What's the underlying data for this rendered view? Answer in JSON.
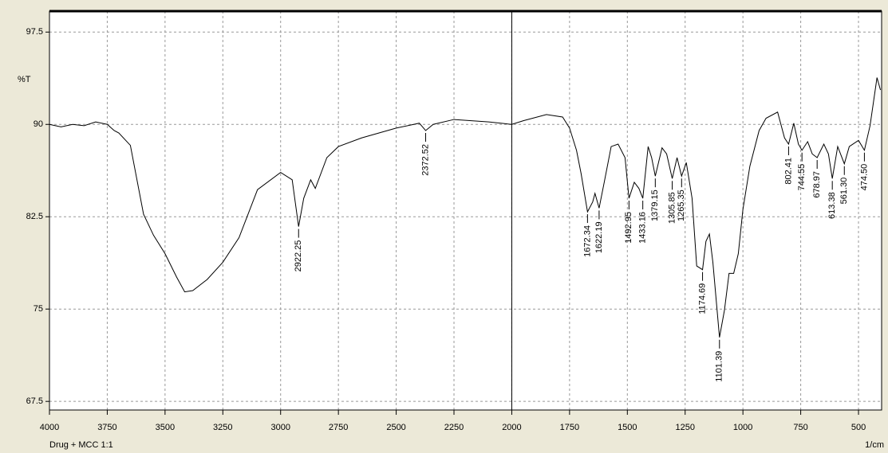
{
  "chart_data": {
    "type": "line",
    "y_label": "%T",
    "x_label": "1/cm",
    "sample": "Drug + MCC 1:1",
    "xlim": [
      4000,
      400
    ],
    "ylim": [
      66.8,
      99.2
    ],
    "xticks": [
      4000,
      3750,
      3500,
      3250,
      3000,
      2750,
      2500,
      2250,
      2000,
      1750,
      1500,
      1250,
      1000,
      750,
      500
    ],
    "yticks": [
      67.5,
      75,
      82.5,
      90,
      97.5
    ],
    "grid": true,
    "vline": 2000,
    "x": [
      4000,
      3950,
      3900,
      3850,
      3800,
      3750,
      3720,
      3700,
      3650,
      3593,
      3550,
      3500,
      3450,
      3415,
      3380,
      3318,
      3250,
      3180,
      3100,
      3000,
      2950,
      2922.25,
      2900,
      2870,
      2850,
      2800,
      2750,
      2650,
      2500,
      2400,
      2372.52,
      2340,
      2250,
      2100,
      2000,
      1950,
      1850,
      1780,
      1750,
      1720,
      1700,
      1672.34,
      1650,
      1640,
      1622.19,
      1600,
      1570,
      1540,
      1510,
      1492.95,
      1470,
      1450,
      1433.16,
      1410,
      1395,
      1379.15,
      1350,
      1330,
      1305.85,
      1285,
      1265.35,
      1245,
      1220,
      1200,
      1174.69,
      1160,
      1145,
      1130,
      1101.39,
      1080,
      1060,
      1040,
      1020,
      1000,
      970,
      930,
      900,
      850,
      820,
      802.41,
      780,
      760,
      744.55,
      720,
      700,
      678.97,
      650,
      630,
      613.38,
      590,
      561.3,
      540,
      500,
      474.5,
      450,
      420,
      405
    ],
    "series": [
      {
        "color": "#000000",
        "values": [
          90.0,
          89.8,
          90.0,
          89.9,
          90.2,
          90.0,
          89.5,
          89.3,
          88.3,
          82.7,
          81.0,
          79.5,
          77.6,
          76.4,
          76.5,
          77.4,
          78.8,
          80.8,
          84.7,
          86.1,
          85.5,
          81.7,
          84.0,
          85.5,
          84.8,
          87.3,
          88.2,
          88.9,
          89.7,
          90.1,
          89.5,
          90.0,
          90.4,
          90.2,
          90.0,
          90.3,
          90.8,
          90.6,
          89.7,
          87.9,
          86.0,
          82.9,
          83.7,
          84.4,
          83.2,
          85.3,
          88.2,
          88.4,
          87.3,
          84.0,
          85.3,
          84.8,
          84.0,
          88.2,
          87.3,
          85.8,
          88.1,
          87.6,
          85.6,
          87.3,
          85.8,
          86.9,
          84.0,
          78.5,
          78.2,
          80.5,
          81.1,
          78.8,
          72.7,
          74.9,
          77.9,
          77.9,
          79.5,
          83.1,
          86.6,
          89.5,
          90.5,
          91.0,
          88.9,
          88.4,
          90.1,
          88.4,
          87.9,
          88.6,
          87.6,
          87.3,
          88.4,
          87.6,
          85.6,
          88.2,
          86.8,
          88.2,
          88.7,
          87.9,
          89.9,
          93.8,
          92.8
        ]
      }
    ],
    "peaks": [
      {
        "value": 2922.25,
        "label": "2922.25"
      },
      {
        "value": 2372.52,
        "label": "2372.52"
      },
      {
        "value": 1672.34,
        "label": "1672.34"
      },
      {
        "value": 1622.19,
        "label": "1622.19"
      },
      {
        "value": 1492.95,
        "label": "1492.95"
      },
      {
        "value": 1433.16,
        "label": "1433.16"
      },
      {
        "value": 1379.15,
        "label": "1379.15"
      },
      {
        "value": 1305.85,
        "label": "1305.85"
      },
      {
        "value": 1265.35,
        "label": "1265.35"
      },
      {
        "value": 1174.69,
        "label": "1174.69"
      },
      {
        "value": 1101.39,
        "label": "1101.39"
      },
      {
        "value": 802.41,
        "label": "802.41"
      },
      {
        "value": 744.55,
        "label": "744.55"
      },
      {
        "value": 678.97,
        "label": "678.97"
      },
      {
        "value": 613.38,
        "label": "613.38"
      },
      {
        "value": 561.3,
        "label": "561.30"
      },
      {
        "value": 474.5,
        "label": "474.50"
      }
    ]
  }
}
